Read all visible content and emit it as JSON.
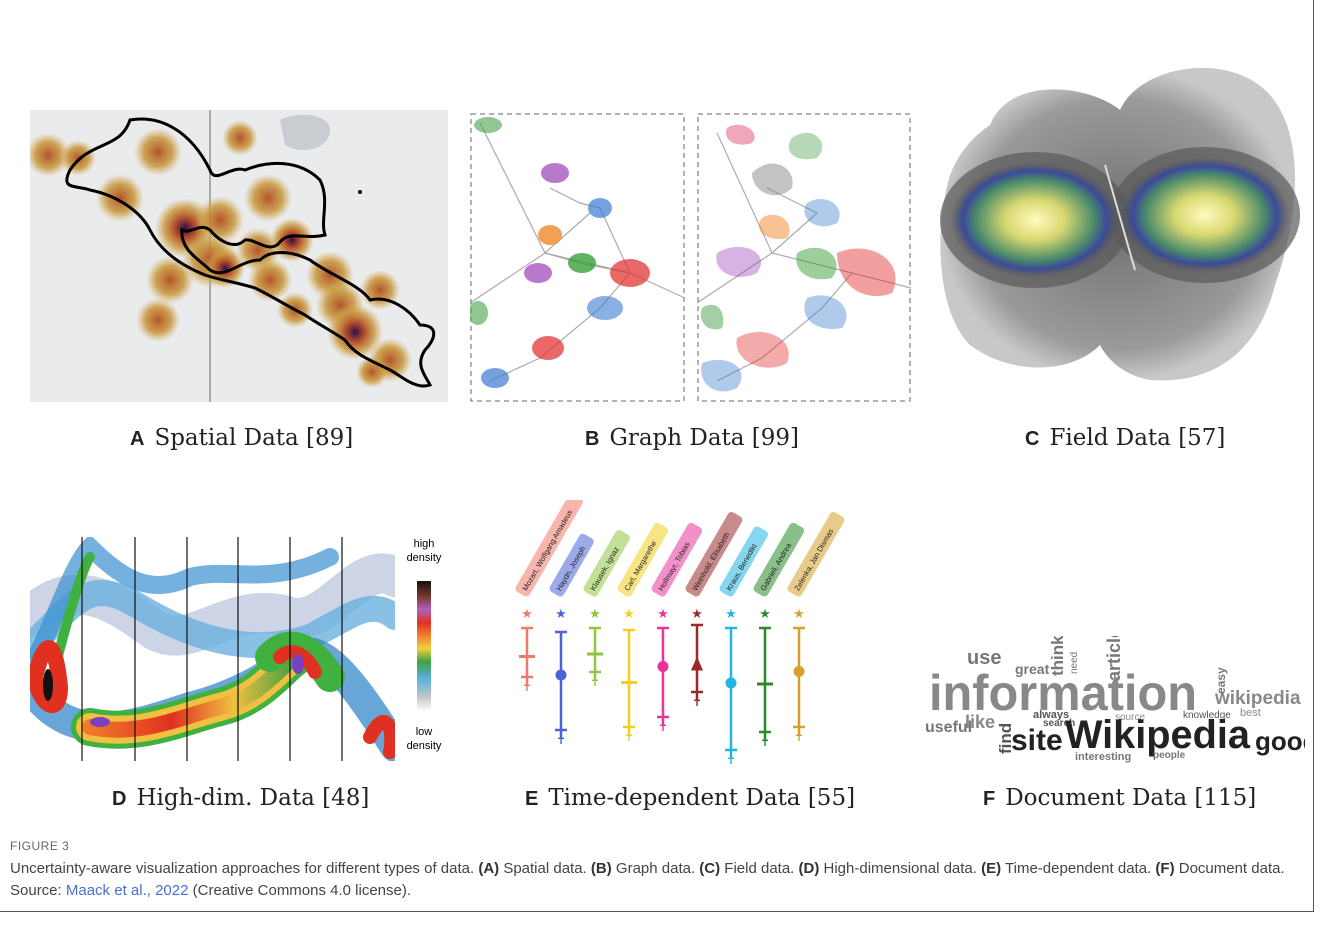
{
  "panels": {
    "a": {
      "letter": "A",
      "title": "Spatial Data [89]"
    },
    "b": {
      "letter": "B",
      "title": "Graph Data [99]"
    },
    "c": {
      "letter": "C",
      "title": "Field Data [57]"
    },
    "d": {
      "letter": "D",
      "title": "High-dim. Data [48]",
      "legend_high": "high",
      "legend_high2": "density",
      "legend_low": "low",
      "legend_low2": "density"
    },
    "e": {
      "letter": "E",
      "title": "Time-dependent Data [55]",
      "names": [
        "Mozart, Wolfgang Amadeus",
        "Haydn, Joseph",
        "Klausek, Ignaz",
        "Carl, Margarethe",
        "Hollmayr, Tobias",
        "Weinhold, Elisabeth",
        "Kraus, Benedikt",
        "Gabrieli, Andrea",
        "Zelenka, Jan Dismas"
      ],
      "colors": [
        "#f0796a",
        "#4a64d8",
        "#8fc63f",
        "#f0d020",
        "#e8349a",
        "#9a2a2a",
        "#21b5e0",
        "#2a8a2a",
        "#d6a12a"
      ]
    },
    "f": {
      "letter": "F",
      "title": "Document Data [115]",
      "words": {
        "information": "information",
        "wikipedia": "Wikipedia",
        "site": "site",
        "good": "good",
        "use": "use",
        "useful": "useful",
        "like": "like",
        "find": "find",
        "great": "great",
        "think": "think",
        "articles": "articles",
        "always": "always",
        "search": "search",
        "interesting": "interesting",
        "knowledge": "knowledge",
        "wikipedia_small": "wikipedia",
        "easy": "easy",
        "best": "best",
        "people": "people",
        "need": "need",
        "source": "source"
      }
    }
  },
  "figure": {
    "label": "FIGURE 3",
    "caption_intro": "Uncertainty-aware visualization approaches for different types of data.",
    "parts": [
      {
        "tag": "(A)",
        "text": "Spatial data."
      },
      {
        "tag": "(B)",
        "text": "Graph data."
      },
      {
        "tag": "(C)",
        "text": "Field data."
      },
      {
        "tag": "(D)",
        "text": "High-dimensional data."
      },
      {
        "tag": "(E)",
        "text": "Time-dependent data."
      },
      {
        "tag": "(F)",
        "text": "Document data."
      }
    ],
    "source_prefix": "Source:",
    "source_link": "Maack et al., 2022",
    "source_suffix": "(Creative Commons 4.0 license)."
  }
}
